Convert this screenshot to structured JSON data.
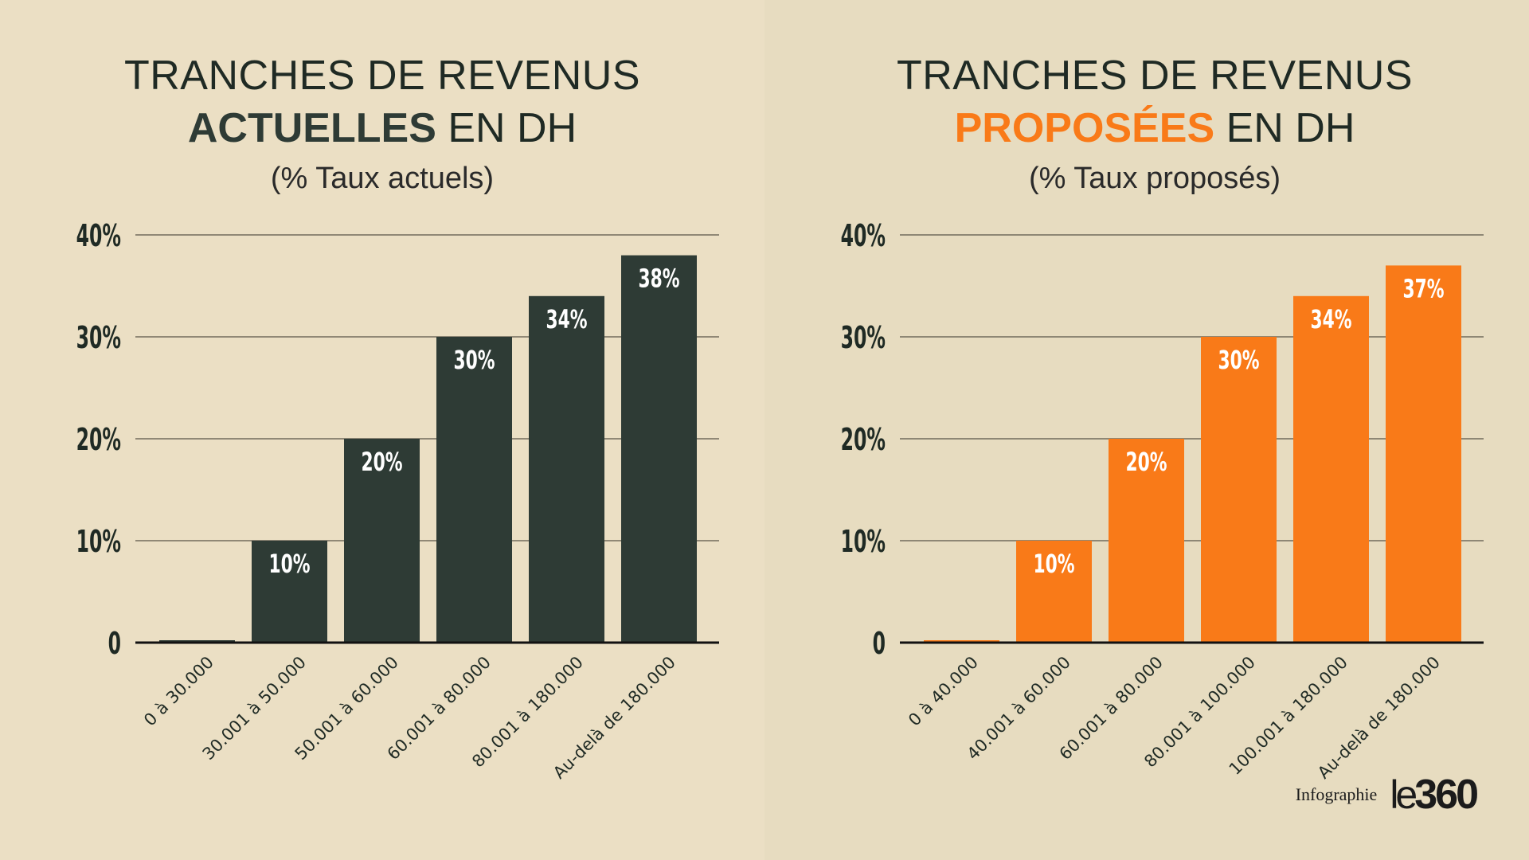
{
  "credit": {
    "label": "Infographie",
    "logo_text": "le360"
  },
  "panels": [
    {
      "title_line1": "TRANCHES DE REVENUS",
      "title_highlight": "ACTUELLES",
      "title_suffix": "EN DH",
      "subtitle": "(% Taux actuels)",
      "accent_color": "#2e3b35"
    },
    {
      "title_line1": "TRANCHES DE REVENUS",
      "title_highlight": "PROPOSÉES",
      "title_suffix": "EN DH",
      "subtitle": "(% Taux proposés)",
      "accent_color": "#f97a18"
    }
  ],
  "chart_data": [
    {
      "type": "bar",
      "title": "TRANCHES DE REVENUS ACTUELLES EN DH",
      "subtitle": "(% Taux actuels)",
      "categories": [
        "0 à 30.000",
        "30.001 à 50.000",
        "50.001 à 60.000",
        "60.001 à 80.000",
        "80.001 à 180.000",
        "Au-delà de 180.000"
      ],
      "values": [
        0,
        10,
        20,
        30,
        34,
        38
      ],
      "data_labels": [
        "",
        "10%",
        "20%",
        "30%",
        "34%",
        "38%"
      ],
      "yticks": [
        "0",
        "10%",
        "20%",
        "30%",
        "40%"
      ],
      "ylim": [
        0,
        40
      ],
      "grid": true,
      "color": "#2e3b35"
    },
    {
      "type": "bar",
      "title": "TRANCHES DE REVENUS PROPOSÉES EN DH",
      "subtitle": "(% Taux proposés)",
      "categories": [
        "0 à 40.000",
        "40.001 à 60.000",
        "60.001 à 80.000",
        "80.001 à 100.000",
        "100.001 à 180.000",
        "Au-delà de 180.000"
      ],
      "values": [
        0,
        10,
        20,
        30,
        34,
        37
      ],
      "data_labels": [
        "",
        "10%",
        "20%",
        "30%",
        "34%",
        "37%"
      ],
      "yticks": [
        "0",
        "10%",
        "20%",
        "30%",
        "40%"
      ],
      "ylim": [
        0,
        40
      ],
      "grid": true,
      "color": "#f97a18"
    }
  ]
}
